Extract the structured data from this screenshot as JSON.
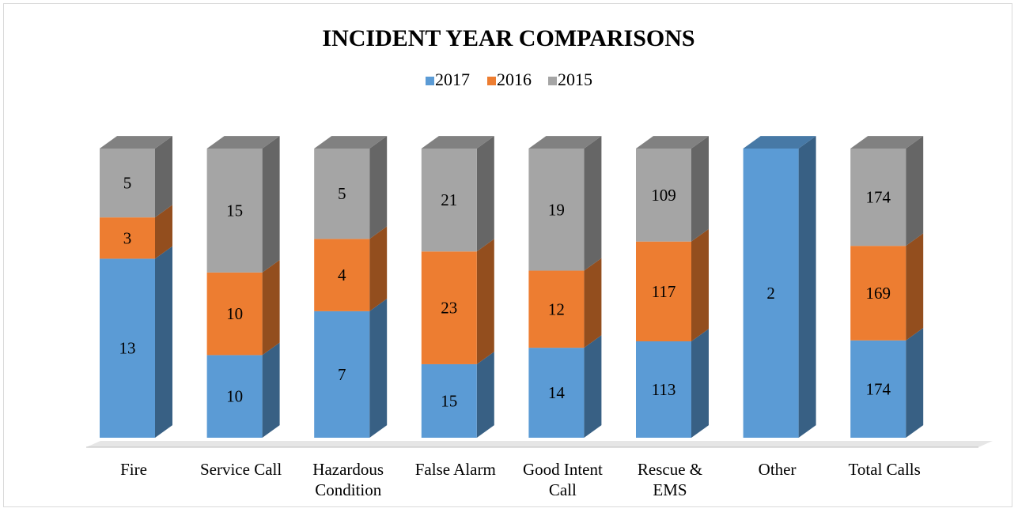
{
  "chart_data": {
    "type": "bar",
    "stacked": true,
    "style": "3d-column",
    "title": "INCIDENT YEAR COMPARISONS",
    "legend_position": "top",
    "grid": false,
    "categories": [
      [
        "Fire"
      ],
      [
        "Service Call"
      ],
      [
        "Hazardous",
        "Condition"
      ],
      [
        "False Alarm"
      ],
      [
        "Good Intent",
        "Call"
      ],
      [
        "Rescue &",
        "EMS"
      ],
      [
        "Other"
      ],
      [
        "Total Calls"
      ]
    ],
    "series": [
      {
        "name": "2017",
        "color": "#5b9bd5",
        "values": [
          13,
          10,
          7,
          15,
          14,
          113,
          2,
          174
        ]
      },
      {
        "name": "2016",
        "color": "#ed7d31",
        "values": [
          3,
          10,
          4,
          23,
          12,
          117,
          null,
          169
        ]
      },
      {
        "name": "2015",
        "color": "#a5a5a5",
        "values": [
          5,
          15,
          5,
          21,
          19,
          109,
          null,
          174
        ]
      }
    ]
  }
}
